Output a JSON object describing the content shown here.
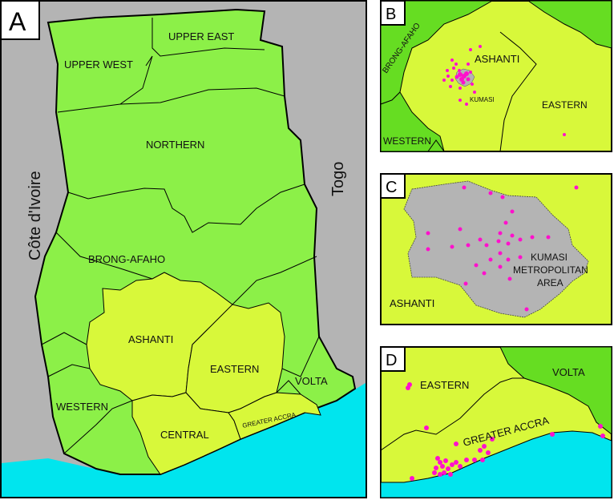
{
  "colors": {
    "ocean": "#00e5ee",
    "neighbor": "#b4b4b4",
    "green": "#8cf048",
    "lime": "#d8f83a",
    "dark_green": "#66dd22",
    "metro_gray": "#b4b4b4",
    "point": "#ff10cc",
    "border": "#000000"
  },
  "panels": [
    {
      "id": "A",
      "label": "A"
    },
    {
      "id": "B",
      "label": "B"
    },
    {
      "id": "C",
      "label": "C"
    },
    {
      "id": "D",
      "label": "D"
    }
  ],
  "map_a": {
    "neighbors": [
      "Côte d'Ivoire",
      "Togo"
    ],
    "regions": [
      {
        "name": "UPPER EAST"
      },
      {
        "name": "UPPER WEST"
      },
      {
        "name": "NORTHERN"
      },
      {
        "name": "BRONG-AFAHO"
      },
      {
        "name": "ASHANTI"
      },
      {
        "name": "EASTERN"
      },
      {
        "name": "VOLTA"
      },
      {
        "name": "WESTERN"
      },
      {
        "name": "CENTRAL"
      },
      {
        "name": "GREATER ACCRA"
      }
    ]
  },
  "map_b": {
    "labels": [
      "BRONG-AFAHO",
      "ASHANTI",
      "KUMASI",
      "EASTERN",
      "WESTERN"
    ]
  },
  "map_c": {
    "labels": [
      "KUMASI",
      "METROPOLITAN",
      "AREA",
      "ASHANTI"
    ]
  },
  "map_d": {
    "labels": [
      "EASTERN",
      "VOLTA",
      "GREATER ACCRA"
    ]
  }
}
